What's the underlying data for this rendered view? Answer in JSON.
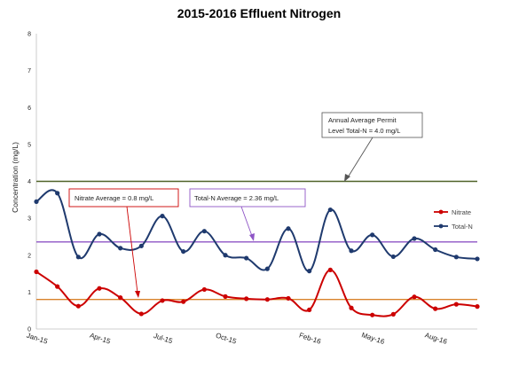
{
  "chart_data": {
    "type": "line",
    "title": "2015-2016 Effluent Nitrogen",
    "xlabel": "",
    "ylabel": "Concentration (mg/L)",
    "ylim": [
      0,
      8
    ],
    "yticks": [
      "0",
      "1",
      "2",
      "3",
      "4",
      "5",
      "6",
      "7",
      "8"
    ],
    "x_tick_labels": [
      "Jan-15",
      "Apr-15",
      "Jul-15",
      "Oct-15",
      "Feb-16",
      "May-16",
      "Aug-16"
    ],
    "x_tick_positions": [
      0,
      3,
      6,
      9,
      13,
      16,
      19
    ],
    "grid": false,
    "legend_position": "right",
    "series": [
      {
        "name": "Nitrate",
        "color": "#cc0000",
        "values": [
          1.55,
          1.15,
          0.62,
          1.1,
          0.85,
          0.41,
          0.77,
          0.74,
          1.07,
          0.88,
          0.82,
          0.8,
          0.83,
          0.52,
          1.6,
          0.57,
          0.38,
          0.4,
          0.87,
          0.55,
          0.67,
          0.61
        ]
      },
      {
        "name": "Total-N",
        "color": "#1f3a6e",
        "values": [
          3.45,
          3.68,
          1.95,
          2.57,
          2.19,
          2.25,
          3.06,
          2.1,
          2.65,
          2.0,
          1.92,
          1.63,
          2.72,
          1.57,
          3.23,
          2.12,
          2.55,
          1.96,
          2.45,
          2.15,
          1.95,
          1.9
        ]
      }
    ],
    "reference_lines": [
      {
        "value": 4.0,
        "color": "#4f6228"
      },
      {
        "value": 2.36,
        "color": "#8e55c6"
      },
      {
        "value": 0.8,
        "color": "#d9822b"
      }
    ],
    "annotations": {
      "permit_line1": "Annual Average Permit",
      "permit_line2": "Level Total-N = 4.0 mg/L",
      "nitrate_avg": "Nitrate Average = 0.8 mg/L",
      "totaln_avg": "Total-N Average = 2.36 mg/L"
    }
  }
}
